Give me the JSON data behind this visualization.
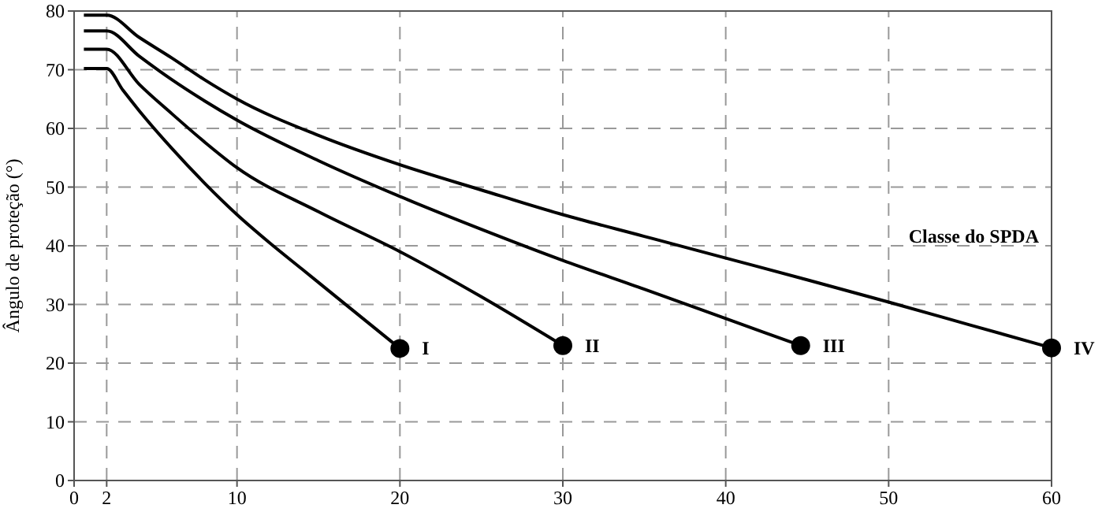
{
  "chart_data": {
    "type": "line",
    "ylabel": "Ângulo de proteção (°)",
    "xlim": [
      0,
      60
    ],
    "ylim": [
      0,
      80
    ],
    "xticks": [
      0,
      2,
      10,
      20,
      30,
      40,
      50,
      60
    ],
    "yticks": [
      0,
      10,
      20,
      30,
      40,
      50,
      60,
      70,
      80
    ],
    "grid": true,
    "line_style": "solid",
    "marker": "none",
    "annotations": [
      "Classe do SPDA"
    ],
    "series": [
      {
        "name": "I",
        "color": "#000000",
        "x": [
          0.6,
          2,
          3,
          4,
          6,
          8,
          10,
          12,
          14,
          16,
          18,
          20
        ],
        "values": [
          70.2,
          70.2,
          66.5,
          63,
          56.6,
          50.7,
          45.3,
          40.5,
          36,
          31.5,
          27,
          22.5
        ]
      },
      {
        "name": "II",
        "color": "#000000",
        "x": [
          0.6,
          2,
          4,
          6,
          8,
          10,
          15,
          20,
          25,
          30
        ],
        "values": [
          73.5,
          73.5,
          67.5,
          62.5,
          57.7,
          53.3,
          45.8,
          39,
          31.3,
          23
        ]
      },
      {
        "name": "III",
        "color": "#000000",
        "x": [
          0.6,
          2,
          4,
          6,
          8,
          10,
          15,
          20,
          25,
          30,
          35,
          40,
          44.6
        ],
        "values": [
          76.6,
          76.6,
          72.3,
          68.3,
          64.7,
          61.4,
          54.5,
          48.4,
          42.8,
          37.5,
          32.6,
          27.6,
          23
        ]
      },
      {
        "name": "IV",
        "color": "#000000",
        "x": [
          0.6,
          2,
          4,
          6,
          8,
          10,
          15,
          20,
          25,
          30,
          35,
          40,
          45,
          50,
          55,
          60
        ],
        "values": [
          79.3,
          79.3,
          75.5,
          72,
          68.3,
          65,
          58.8,
          53.8,
          49.5,
          45.3,
          41.6,
          37.9,
          34.2,
          30.4,
          26.5,
          22.6
        ]
      },
      {
        "type": "scatter",
        "marker": "circle",
        "color": "#000000",
        "x": [
          20,
          30,
          44.6,
          60
        ],
        "values": [
          22.5,
          23,
          23,
          22.6
        ]
      }
    ]
  }
}
